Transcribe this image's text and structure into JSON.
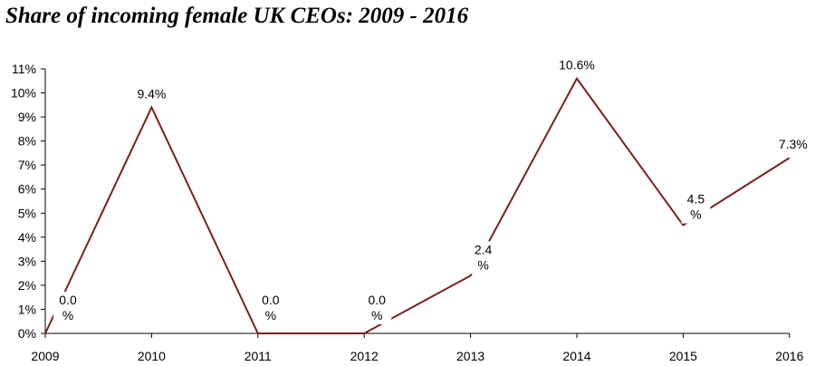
{
  "chart_data": {
    "type": "line",
    "title": "Share of incoming female UK CEOs: 2009 - 2016",
    "xlabel": "",
    "ylabel": "",
    "x": [
      "2009",
      "2010",
      "2011",
      "2012",
      "2013",
      "2014",
      "2015",
      "2016"
    ],
    "series": [
      {
        "values": [
          0.0,
          9.4,
          0.0,
          0.0,
          2.4,
          10.6,
          4.5,
          7.3
        ],
        "data_labels": [
          [
            "0.0",
            "%"
          ],
          [
            "9.4%"
          ],
          [
            "0.0",
            "%"
          ],
          [
            "0.0",
            "%"
          ],
          [
            "2.4",
            "%"
          ],
          [
            "10.6%"
          ],
          [
            "4.5",
            "%"
          ],
          [
            "7.3%"
          ]
        ],
        "color": "#7a1f1f"
      }
    ],
    "ylim": [
      0,
      11
    ],
    "y_ticks": [
      "0%",
      "1%",
      "2%",
      "3%",
      "4%",
      "5%",
      "6%",
      "7%",
      "8%",
      "9%",
      "10%",
      "11%"
    ],
    "grid": false,
    "legend": "none"
  }
}
